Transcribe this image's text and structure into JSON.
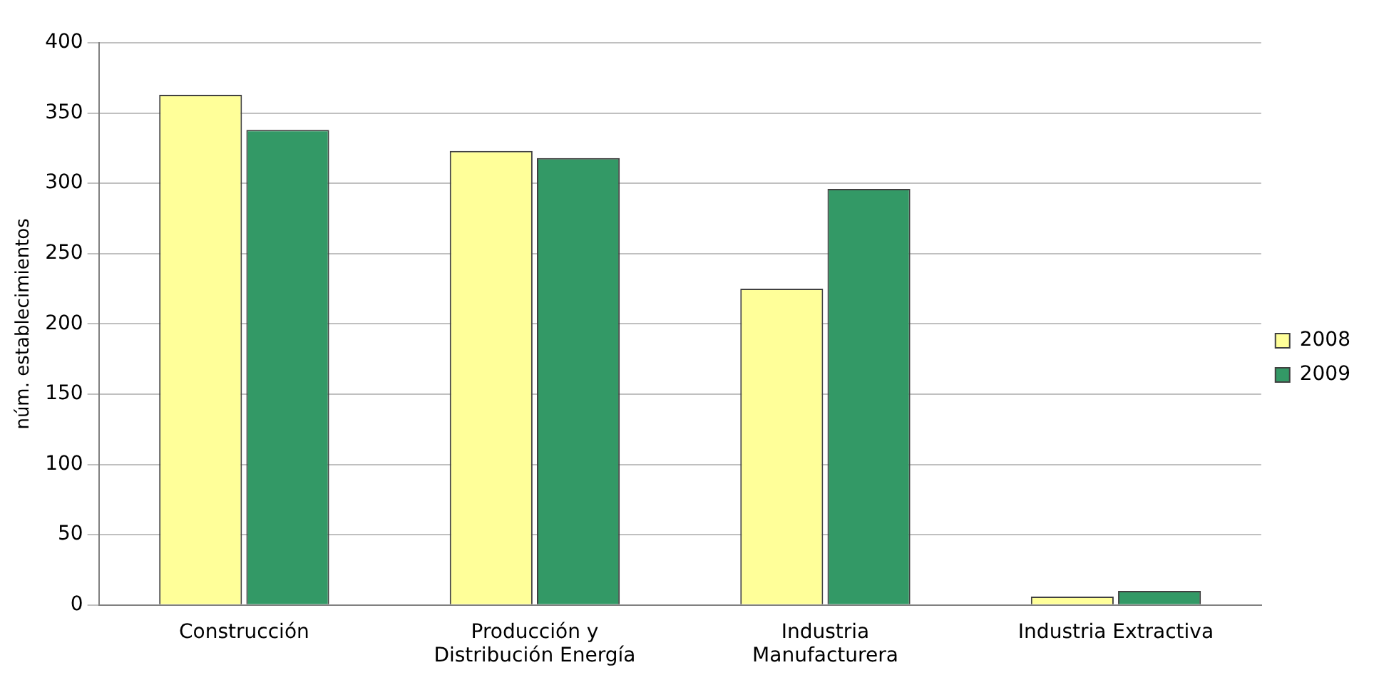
{
  "chart_data": {
    "type": "bar",
    "ylabel": "núm. establecimientos",
    "categories": [
      "Construcción",
      "Producción y Distribución Energía",
      "Industria Manufacturera",
      "Industria Extractiva"
    ],
    "series": [
      {
        "name": "2008",
        "color": "#ffff99",
        "values": [
          363,
          323,
          225,
          6
        ]
      },
      {
        "name": "2009",
        "color": "#339966",
        "values": [
          338,
          318,
          296,
          10
        ]
      }
    ],
    "ylim": [
      0,
      400
    ],
    "yticks": [
      0,
      50,
      100,
      150,
      200,
      250,
      300,
      350,
      400
    ],
    "grid": "y",
    "legend": "right"
  }
}
